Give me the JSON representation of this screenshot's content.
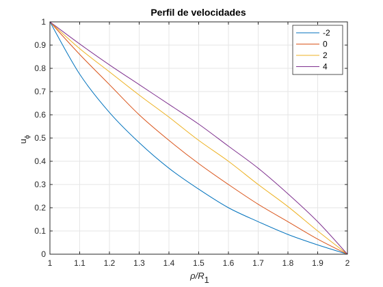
{
  "chart_data": {
    "type": "line",
    "title": "Perfil de velocidades",
    "xlabel": {
      "main": "ρ/R",
      "sub": "1"
    },
    "ylabel": {
      "main": "u",
      "sub": "ϕ"
    },
    "xlim": [
      1,
      2
    ],
    "ylim": [
      0,
      1
    ],
    "xticks": [
      "1",
      "1.1",
      "1.2",
      "1.3",
      "1.4",
      "1.5",
      "1.6",
      "1.7",
      "1.8",
      "1.9",
      "2"
    ],
    "yticks": [
      "0",
      "0.1",
      "0.2",
      "0.3",
      "0.4",
      "0.5",
      "0.6",
      "0.7",
      "0.8",
      "0.9",
      "1"
    ],
    "grid": true,
    "legend_position": "top-right",
    "x": [
      1.0,
      1.1,
      1.2,
      1.3,
      1.4,
      1.5,
      1.6,
      1.7,
      1.8,
      1.9,
      2.0
    ],
    "series": [
      {
        "name": "-2",
        "color": "#0072BD",
        "values": [
          1.0,
          0.775,
          0.61,
          0.48,
          0.37,
          0.28,
          0.2,
          0.14,
          0.085,
          0.04,
          0.0
        ]
      },
      {
        "name": "0",
        "color": "#D95319",
        "values": [
          1.0,
          0.86,
          0.73,
          0.6,
          0.49,
          0.39,
          0.3,
          0.215,
          0.14,
          0.065,
          0.0
        ]
      },
      {
        "name": "2",
        "color": "#EDB120",
        "values": [
          1.0,
          0.885,
          0.785,
          0.685,
          0.59,
          0.49,
          0.4,
          0.3,
          0.205,
          0.1,
          0.0
        ]
      },
      {
        "name": "4",
        "color": "#7E2F8E",
        "values": [
          1.0,
          0.905,
          0.815,
          0.73,
          0.645,
          0.56,
          0.465,
          0.37,
          0.26,
          0.14,
          0.0
        ]
      }
    ]
  }
}
